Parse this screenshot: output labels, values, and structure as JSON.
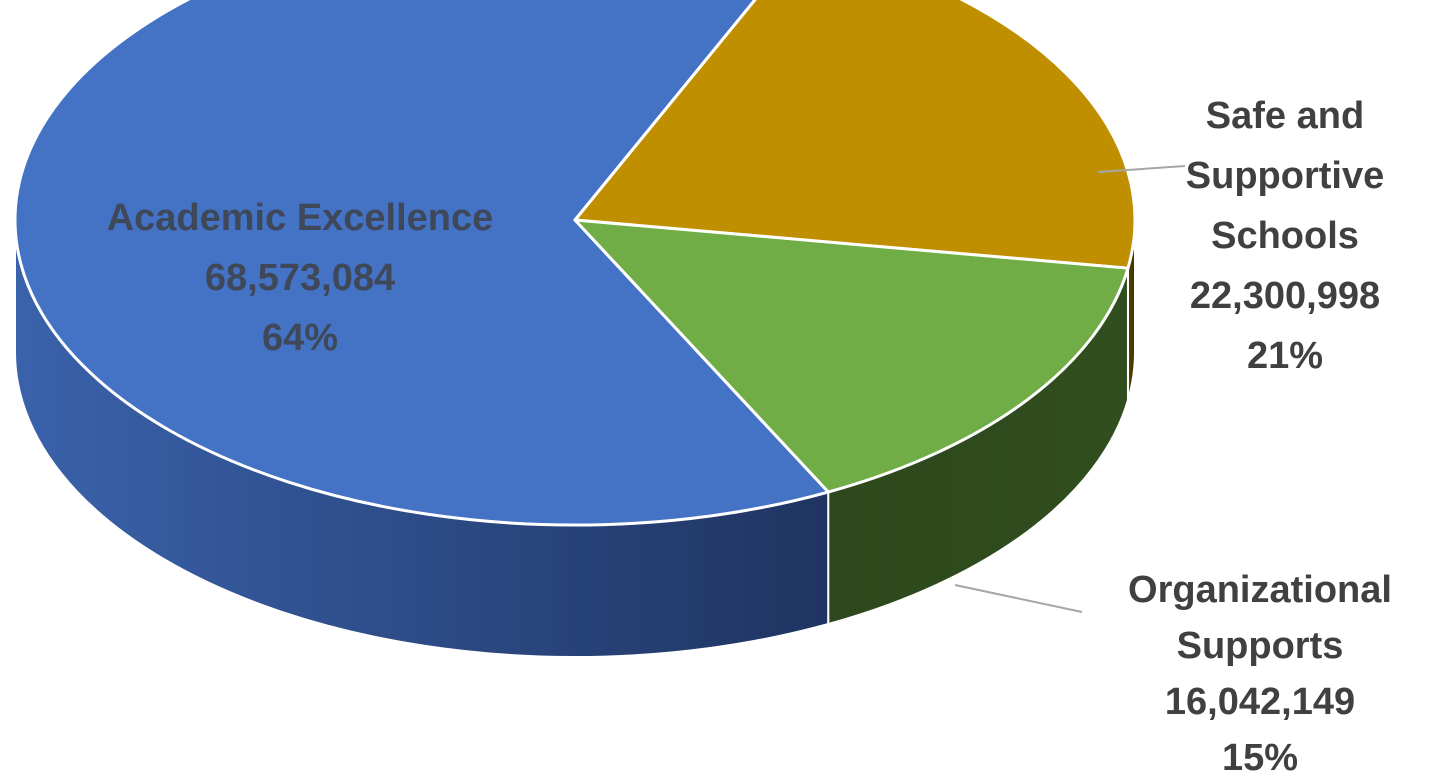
{
  "chart_data": {
    "type": "pie",
    "style": "3d",
    "slices": [
      {
        "label_lines": [
          "Academic Excellence"
        ],
        "value_text": "68,573,084",
        "value": 68573084,
        "percent_text": "64%",
        "top_color": "#4472c4",
        "side_color": "#2e4f8c",
        "label_position": "inside"
      },
      {
        "label_lines": [
          "Safe and",
          "Supportive",
          "Schools"
        ],
        "value_text": "22,300,998",
        "value": 22300998,
        "percent_text": "21%",
        "top_color": "#bf8f00",
        "side_color": "#5a4300",
        "label_position": "outside-right"
      },
      {
        "label_lines": [
          "Organizational",
          "Supports"
        ],
        "value_text": "16,042,149",
        "value": 16042149,
        "percent_text": "15%",
        "top_color": "#70ad47",
        "side_color": "#2f4a1d",
        "label_position": "outside-bottom-right"
      }
    ],
    "legend": "none"
  }
}
